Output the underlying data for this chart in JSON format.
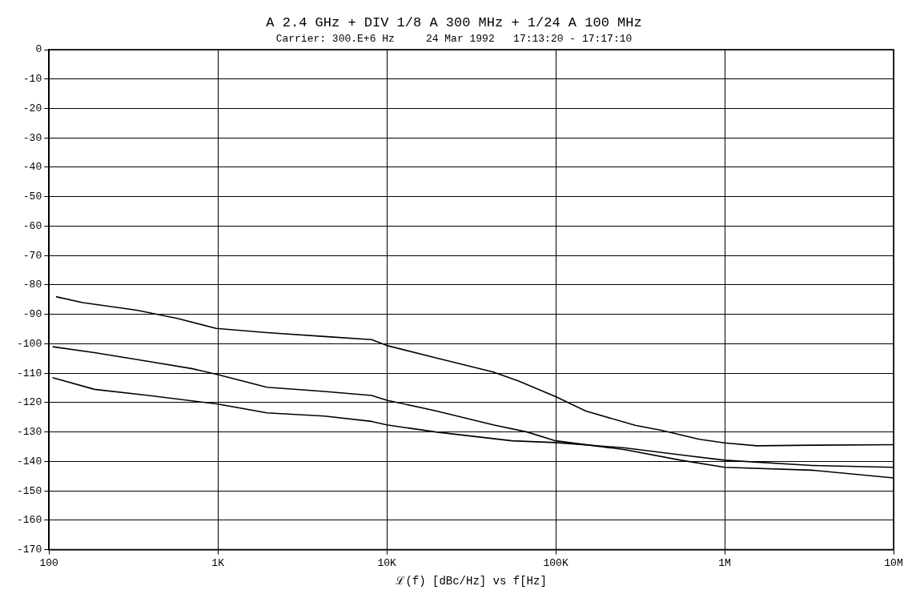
{
  "chart_data": {
    "type": "line",
    "title": "A 2.4 GHz + DIV 1/8 A 300 MHz + 1/24 A 100 MHz",
    "subtitle": "Carrier: 300.E+6 Hz     24 Mar 1992   17:13:20 - 17:17:10",
    "xlabel": "ℒ(f) [dBc/Hz] vs f[Hz]",
    "log": "x",
    "grid": true,
    "legend": false,
    "marker": "none",
    "line_style": "solid",
    "xlim": [
      100,
      10000000
    ],
    "xticks": [
      {
        "value": 100,
        "label": "100"
      },
      {
        "value": 1000,
        "label": "1K"
      },
      {
        "value": 10000,
        "label": "10K"
      },
      {
        "value": 100000,
        "label": "100K"
      },
      {
        "value": 1000000,
        "label": "1M"
      },
      {
        "value": 10000000,
        "label": "10M"
      }
    ],
    "ylim": [
      -170,
      0
    ],
    "yticks": [
      0,
      -10,
      -20,
      -30,
      -40,
      -50,
      -60,
      -70,
      -80,
      -90,
      -100,
      -110,
      -120,
      -130,
      -140,
      -150,
      -160,
      -170
    ],
    "series": [
      {
        "color": "#000000",
        "x": [
          110,
          158,
          331,
          575,
          977,
          1950,
          4470,
          8130,
          10000,
          19500,
          42700,
          60300,
          100000,
          151000,
          295000,
          427000,
          708000,
          1000000,
          1550000,
          3310000,
          10000000
        ],
        "values": [
          -84,
          -86,
          -88.6,
          -91.4,
          -94.8,
          -96.2,
          -97.6,
          -98.6,
          -100.6,
          -104.8,
          -109.6,
          -112.7,
          -118,
          -122.9,
          -127.7,
          -129.5,
          -132.5,
          -133.7,
          -134.7,
          -134.5,
          -134.3
        ]
      },
      {
        "color": "#000000",
        "x": [
          105,
          186,
          389,
          708,
          1000,
          1950,
          4270,
          8130,
          10000,
          19500,
          42700,
          67600,
          100000,
          257000,
          550000,
          1000000,
          3310000,
          10000000
        ],
        "values": [
          -101,
          -103,
          -106,
          -108.5,
          -110.5,
          -114.8,
          -116.2,
          -117.6,
          -119.2,
          -122.8,
          -127.6,
          -130,
          -133,
          -136,
          -139.6,
          -142,
          -143,
          -145.6
        ]
      },
      {
        "color": "#000000",
        "x": [
          105,
          186,
          389,
          1000,
          1950,
          4270,
          8130,
          10000,
          19500,
          55000,
          100000,
          257000,
          550000,
          1000000,
          3310000,
          10000000
        ],
        "values": [
          -111.5,
          -115.5,
          -117.6,
          -120.5,
          -123.5,
          -124.6,
          -126.4,
          -127.6,
          -130,
          -133,
          -133.6,
          -135.4,
          -137.8,
          -139.6,
          -141.4,
          -142
        ]
      }
    ]
  }
}
